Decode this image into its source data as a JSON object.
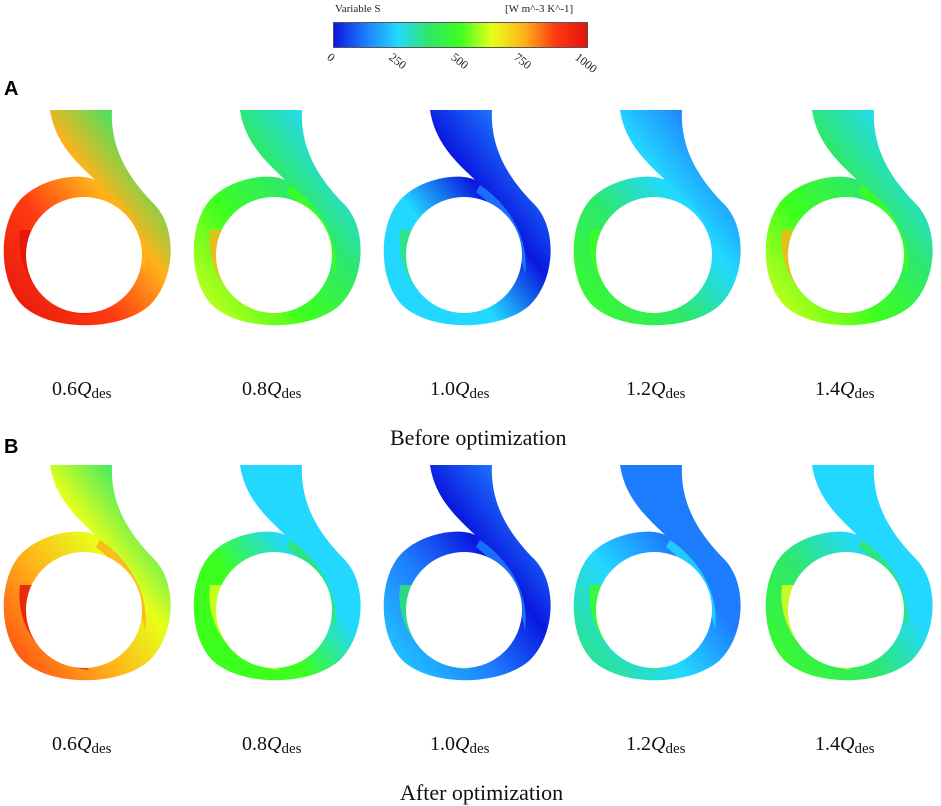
{
  "legend": {
    "variable": "Variable S",
    "unit": "[W m^-3 K^-1]",
    "ticks": [
      "0",
      "250",
      "500",
      "750",
      "1000"
    ],
    "colors": [
      "#0a18e0",
      "#1e7dff",
      "#22d8ff",
      "#2ee86a",
      "#3cff1e",
      "#e8ff1a",
      "#ffb21a",
      "#ff3a12",
      "#e4130b"
    ]
  },
  "row_a": {
    "letter": "A",
    "title": "Before optimization",
    "panels": [
      {
        "coef": "0.6",
        "sym": "Q",
        "sub": "des",
        "level": 0.85
      },
      {
        "coef": "0.8",
        "sym": "Q",
        "sub": "des",
        "level": 0.55
      },
      {
        "coef": "1.0",
        "sym": "Q",
        "sub": "des",
        "level": 0.2
      },
      {
        "coef": "1.2",
        "sym": "Q",
        "sub": "des",
        "level": 0.35
      },
      {
        "coef": "1.4",
        "sym": "Q",
        "sub": "des",
        "level": 0.5
      }
    ]
  },
  "row_b": {
    "letter": "B",
    "title": "After optimization",
    "panels": [
      {
        "coef": "0.6",
        "sym": "Q",
        "sub": "des",
        "level": 0.75
      },
      {
        "coef": "0.8",
        "sym": "Q",
        "sub": "des",
        "level": 0.45
      },
      {
        "coef": "1.0",
        "sym": "Q",
        "sub": "des",
        "level": 0.15
      },
      {
        "coef": "1.2",
        "sym": "Q",
        "sub": "des",
        "level": 0.28
      },
      {
        "coef": "1.4",
        "sym": "Q",
        "sub": "des",
        "level": 0.4
      }
    ]
  }
}
